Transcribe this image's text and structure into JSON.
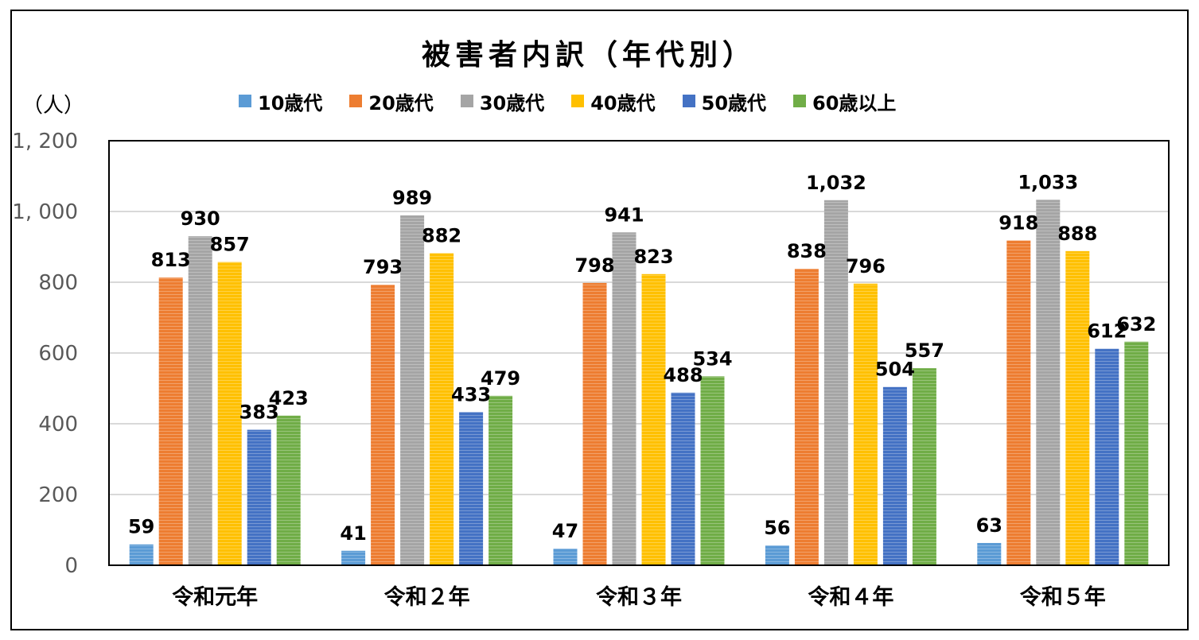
{
  "chart_data": {
    "type": "bar",
    "title": "被害者内訳（年代別）",
    "ylabel": "（人）",
    "xlabel": "",
    "categories": [
      "令和元年",
      "令和２年",
      "令和３年",
      "令和４年",
      "令和５年"
    ],
    "ylim": [
      0,
      1200
    ],
    "yticks": [
      0,
      200,
      400,
      600,
      800,
      1000,
      1200
    ],
    "ytick_labels": [
      "0",
      "200",
      "400",
      "600",
      "800",
      "1, 000",
      "1, 200"
    ],
    "grid": true,
    "legend_position": "top",
    "series": [
      {
        "name": "10歳代",
        "color": "#5B9BD5",
        "values": [
          59,
          41,
          47,
          56,
          63
        ],
        "labels": [
          "59",
          "41",
          "47",
          "56",
          "63"
        ]
      },
      {
        "name": "20歳代",
        "color": "#ED7D31",
        "values": [
          813,
          793,
          798,
          838,
          918
        ],
        "labels": [
          "813",
          "793",
          "798",
          "838",
          "918"
        ]
      },
      {
        "name": "30歳代",
        "color": "#A5A5A5",
        "values": [
          930,
          989,
          941,
          1032,
          1033
        ],
        "labels": [
          "930",
          "989",
          "941",
          "1,032",
          "1,033"
        ]
      },
      {
        "name": "40歳代",
        "color": "#FFC000",
        "values": [
          857,
          882,
          823,
          796,
          888
        ],
        "labels": [
          "857",
          "882",
          "823",
          "796",
          "888"
        ]
      },
      {
        "name": "50歳代",
        "color": "#4472C4",
        "values": [
          383,
          433,
          488,
          504,
          612
        ],
        "labels": [
          "383",
          "433",
          "488",
          "504",
          "612"
        ]
      },
      {
        "name": "60歳以上",
        "color": "#70AD47",
        "values": [
          423,
          479,
          534,
          557,
          632
        ],
        "labels": [
          "423",
          "479",
          "534",
          "557",
          "632"
        ]
      }
    ]
  }
}
